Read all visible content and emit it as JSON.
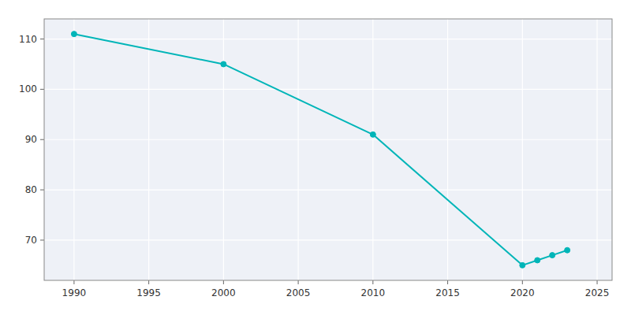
{
  "chart_data": {
    "type": "line",
    "x": [
      1990,
      2000,
      2010,
      2020,
      2021,
      2022,
      2023
    ],
    "values": [
      111,
      105,
      91,
      65,
      66,
      67,
      68
    ],
    "color": "#00b5b8",
    "marker": "circle",
    "xlim": [
      1988,
      2026
    ],
    "ylim": [
      62,
      114
    ],
    "xticks": [
      1990,
      1995,
      2000,
      2005,
      2010,
      2015,
      2020,
      2025
    ],
    "yticks": [
      70,
      80,
      90,
      100,
      110
    ],
    "grid": true
  }
}
